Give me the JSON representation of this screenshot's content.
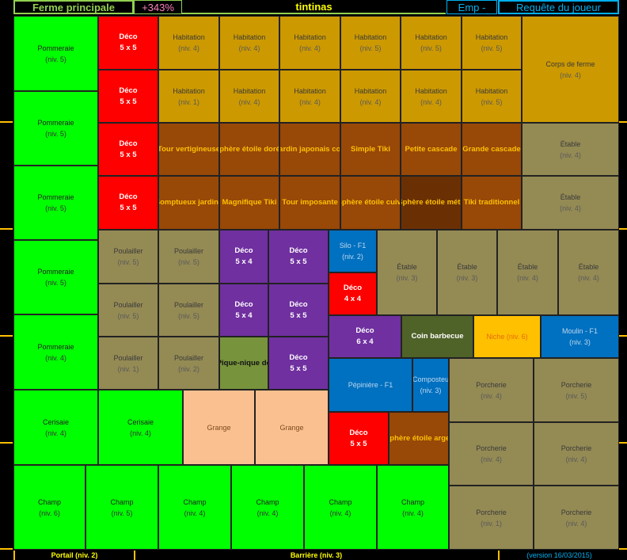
{
  "header": {
    "farm": "Ferme principale",
    "bonus": "+343%",
    "player": "tintinas",
    "emp": "Emp -",
    "request": "Requête du joueur"
  },
  "footer": {
    "gate": "Portail (niv. 2)",
    "fence": "Barrière (niv. 3)",
    "version": "(version 16/03/2015)"
  },
  "colors": {
    "orchard": "#00ff00",
    "deco": "#ff0000",
    "housing": "#cc9900",
    "decor_building": "#984807",
    "dark_decor": "#6a3004",
    "animal": "#948a54",
    "purple_deco": "#7030a0",
    "blue": "#0070c0",
    "barn": "#fac090",
    "olive": "#77933c",
    "bbq": "#4f6228",
    "niche": "#ffc000"
  },
  "cells": [
    {
      "kind": "orchard",
      "l1": "Pommeraie",
      "l2": "(niv. 5)"
    },
    {
      "kind": "orchard",
      "l1": "Pommeraie",
      "l2": "(niv. 5)"
    },
    {
      "kind": "orchard",
      "l1": "Pommeraie",
      "l2": "(niv. 5)"
    },
    {
      "kind": "orchard",
      "l1": "Pommeraie",
      "l2": "(niv. 5)"
    },
    {
      "kind": "orchard",
      "l1": "Pommeraie",
      "l2": "(niv. 4)"
    },
    {
      "kind": "orchard",
      "l1": "Cerisaie",
      "l2": "(niv. 4)"
    },
    {
      "kind": "orchard",
      "l1": "Cerisaie",
      "l2": "(niv. 4)"
    },
    {
      "kind": "orchard",
      "l1": "Champ",
      "l2": "(niv. 6)"
    },
    {
      "kind": "orchard",
      "l1": "Champ",
      "l2": "(niv. 5)"
    },
    {
      "kind": "orchard",
      "l1": "Champ",
      "l2": "(niv. 4)"
    },
    {
      "kind": "orchard",
      "l1": "Champ",
      "l2": "(niv. 4)"
    },
    {
      "kind": "orchard",
      "l1": "Champ",
      "l2": "(niv. 4)"
    },
    {
      "kind": "orchard",
      "l1": "Champ",
      "l2": "(niv. 4)"
    },
    {
      "kind": "deco",
      "l1": "Déco",
      "l2": "5 x 5"
    },
    {
      "kind": "deco",
      "l1": "Déco",
      "l2": "5 x 5"
    },
    {
      "kind": "deco",
      "l1": "Déco",
      "l2": "5 x 5"
    },
    {
      "kind": "deco",
      "l1": "Déco",
      "l2": "5 x 5"
    },
    {
      "kind": "housing",
      "l1": "Habitation",
      "l2": "(niv. 4)"
    },
    {
      "kind": "housing",
      "l1": "Habitation",
      "l2": "(niv. 4)"
    },
    {
      "kind": "housing",
      "l1": "Habitation",
      "l2": "(niv. 4)"
    },
    {
      "kind": "housing",
      "l1": "Habitation",
      "l2": "(niv. 5)"
    },
    {
      "kind": "housing",
      "l1": "Habitation",
      "l2": "(niv. 5)"
    },
    {
      "kind": "housing",
      "l1": "Habitation",
      "l2": "(niv. 5)"
    },
    {
      "kind": "housing",
      "l1": "Habitation",
      "l2": "(niv. 1)"
    },
    {
      "kind": "housing",
      "l1": "Habitation",
      "l2": "(niv. 4)"
    },
    {
      "kind": "housing",
      "l1": "Habitation",
      "l2": "(niv. 4)"
    },
    {
      "kind": "housing",
      "l1": "Habitation",
      "l2": "(niv. 4)"
    },
    {
      "kind": "housing",
      "l1": "Habitation",
      "l2": "(niv. 4)"
    },
    {
      "kind": "housing",
      "l1": "Habitation",
      "l2": "(niv. 5)"
    },
    {
      "kind": "housing",
      "l1": "Corps de ferme",
      "l2": "(niv. 4)"
    },
    {
      "kind": "decor_building",
      "l1": "Tour vertigineuse",
      "l2": ""
    },
    {
      "kind": "decor_building",
      "l1": "Sphère étoile dorée",
      "l2": ""
    },
    {
      "kind": "decor_building",
      "l1": "Jardin japonais con",
      "l2": ""
    },
    {
      "kind": "decor_building",
      "l1": "Simple Tiki",
      "l2": ""
    },
    {
      "kind": "decor_building",
      "l1": "Petite cascade",
      "l2": ""
    },
    {
      "kind": "decor_building",
      "l1": "Grande cascade",
      "l2": ""
    },
    {
      "kind": "decor_building",
      "l1": "Somptueux jardin j",
      "l2": ""
    },
    {
      "kind": "decor_building",
      "l1": "Magnifique Tiki",
      "l2": ""
    },
    {
      "kind": "decor_building",
      "l1": "Tour imposante",
      "l2": ""
    },
    {
      "kind": "decor_building",
      "l1": "Sphère étoile cuivr",
      "l2": ""
    },
    {
      "kind": "dark_decor",
      "l1": "Sphère étoile mété",
      "l2": ""
    },
    {
      "kind": "decor_building",
      "l1": "Tiki traditionnel",
      "l2": ""
    },
    {
      "kind": "animal",
      "l1": "Étable",
      "l2": "(niv. 4)"
    },
    {
      "kind": "animal",
      "l1": "Étable",
      "l2": "(niv. 4)"
    },
    {
      "kind": "animal",
      "l1": "Poulailler",
      "l2": "(niv. 5)"
    },
    {
      "kind": "animal",
      "l1": "Poulailler",
      "l2": "(niv. 5)"
    },
    {
      "kind": "animal",
      "l1": "Poulailler",
      "l2": "(niv. 5)"
    },
    {
      "kind": "animal",
      "l1": "Poulailler",
      "l2": "(niv. 5)"
    },
    {
      "kind": "animal",
      "l1": "Poulailler",
      "l2": "(niv. 1)"
    },
    {
      "kind": "animal",
      "l1": "Poulailler",
      "l2": "(niv. 2)"
    },
    {
      "kind": "purple_deco",
      "l1": "Déco",
      "l2": "5 x 4"
    },
    {
      "kind": "purple_deco",
      "l1": "Déco",
      "l2": "5 x 5"
    },
    {
      "kind": "purple_deco",
      "l1": "Déco",
      "l2": "5 x 4"
    },
    {
      "kind": "purple_deco",
      "l1": "Déco",
      "l2": "5 x 5"
    },
    {
      "kind": "olive",
      "l1": "Pique-nique do",
      "l2": ""
    },
    {
      "kind": "purple_deco",
      "l1": "Déco",
      "l2": "5 x 5"
    },
    {
      "kind": "blue",
      "l1": "Silo - F1",
      "l2": "(niv. 2)"
    },
    {
      "kind": "deco",
      "l1": "Déco",
      "l2": "4 x 4"
    },
    {
      "kind": "animal",
      "l1": "Étable",
      "l2": "(niv. 3)"
    },
    {
      "kind": "animal",
      "l1": "Étable",
      "l2": "(niv. 3)"
    },
    {
      "kind": "animal",
      "l1": "Étable",
      "l2": "(niv. 4)"
    },
    {
      "kind": "animal",
      "l1": "Étable",
      "l2": "(niv. 4)"
    },
    {
      "kind": "purple_deco",
      "l1": "Déco",
      "l2": "6 x 4"
    },
    {
      "kind": "bbq",
      "l1": "Coin barbecue",
      "l2": ""
    },
    {
      "kind": "niche",
      "l1": "Niche (niv. 6)",
      "l2": ""
    },
    {
      "kind": "blue",
      "l1": "Moulin - F1",
      "l2": "(niv. 3)"
    },
    {
      "kind": "blue",
      "l1": "Pépinière - F1",
      "l2": ""
    },
    {
      "kind": "blue",
      "l1": "Composteu",
      "l2": "(niv. 3)"
    },
    {
      "kind": "animal",
      "l1": "Porcherie",
      "l2": "(niv. 4)"
    },
    {
      "kind": "animal",
      "l1": "Porcherie",
      "l2": "(niv. 5)"
    },
    {
      "kind": "animal",
      "l1": "Porcherie",
      "l2": "(niv. 4)"
    },
    {
      "kind": "animal",
      "l1": "Porcherie",
      "l2": "(niv. 4)"
    },
    {
      "kind": "animal",
      "l1": "Porcherie",
      "l2": "(niv. 1)"
    },
    {
      "kind": "animal",
      "l1": "Porcherie",
      "l2": "(niv. 4)"
    },
    {
      "kind": "barn",
      "l1": "Grange",
      "l2": ""
    },
    {
      "kind": "barn",
      "l1": "Grange",
      "l2": ""
    },
    {
      "kind": "deco",
      "l1": "Déco",
      "l2": "5 x 5"
    },
    {
      "kind": "decor_building",
      "l1": "Sphère étoile arger",
      "l2": ""
    }
  ]
}
